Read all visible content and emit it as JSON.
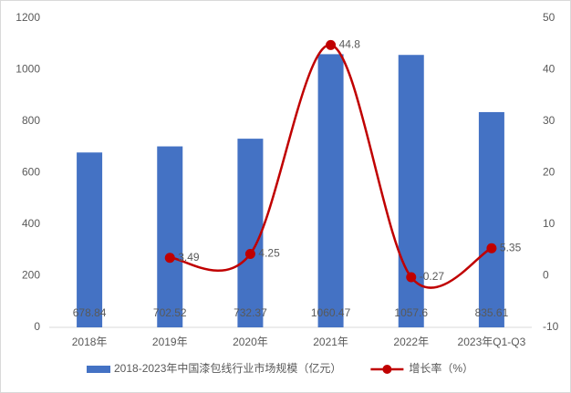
{
  "chart_data": {
    "type": "bar",
    "categories": [
      "2018年",
      "2019年",
      "2020年",
      "2021年",
      "2022年",
      "2023年Q1-Q3"
    ],
    "series": [
      {
        "name": "2018-2023年中国漆包线行业市场规模（亿元）",
        "type": "bar",
        "color": "#4472c4",
        "values": [
          678.84,
          702.52,
          732.37,
          1060.47,
          1057.6,
          835.61
        ]
      },
      {
        "name": "增长率（%）",
        "type": "line",
        "axis": "y2",
        "color": "#c00000",
        "values": [
          null,
          3.49,
          4.25,
          44.8,
          -0.27,
          5.35
        ]
      }
    ],
    "ylim": [
      0,
      1200
    ],
    "yticks": [
      0,
      200,
      400,
      600,
      800,
      1000,
      1200
    ],
    "y2lim": [
      -10,
      50
    ],
    "y2ticks": [
      -10,
      0,
      10,
      20,
      30,
      40,
      50
    ],
    "grid": false,
    "legend": "bottom"
  }
}
